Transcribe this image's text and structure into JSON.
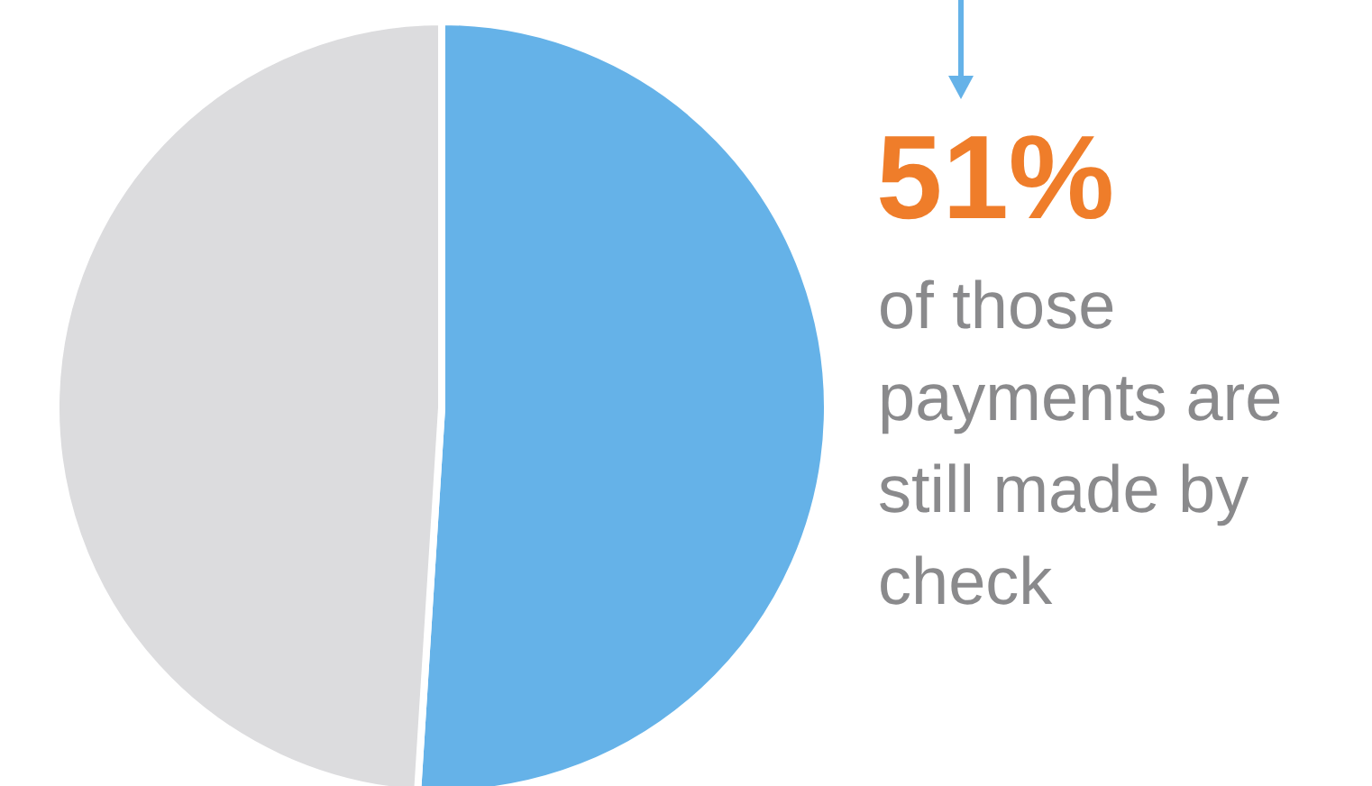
{
  "chart_data": {
    "type": "pie",
    "categories": [
      null,
      null
    ],
    "values": [
      51,
      49
    ],
    "colors": [
      "#65b2e8",
      "#dcdcde"
    ],
    "annotations": [
      "51%",
      "of those payments are still made by check"
    ]
  }
}
